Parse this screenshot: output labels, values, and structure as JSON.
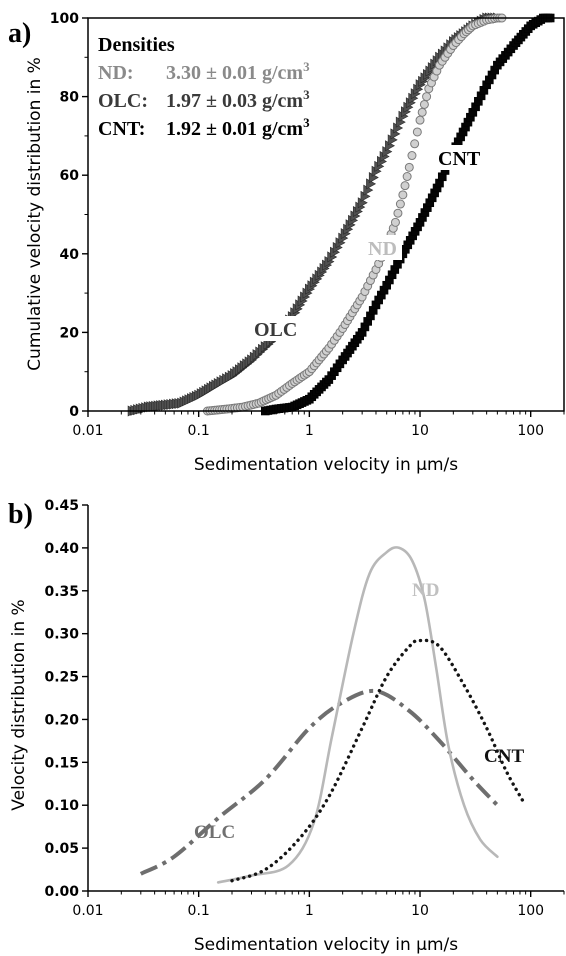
{
  "chart_data": [
    {
      "type": "scatter",
      "panel_label": "a)",
      "xlabel": "Sedimentation velocity in µm/s",
      "ylabel": "Cumulative velocity distribution in %",
      "xscale": "log",
      "xlim": [
        0.01,
        200
      ],
      "ylim": [
        0,
        100
      ],
      "x_ticks": [
        0.01,
        0.1,
        1,
        10,
        100
      ],
      "x_tick_labels": [
        "0.01",
        "0.1",
        "1",
        "10",
        "100"
      ],
      "y_ticks": [
        0,
        20,
        40,
        60,
        80,
        100
      ],
      "y_tick_labels": [
        "0",
        "20",
        "40",
        "60",
        "80",
        "100"
      ],
      "legend_box": {
        "title": "Densities",
        "rows": [
          {
            "name": "ND:",
            "value": "3.30 ± 0.01 g/cm",
            "sup": "3",
            "color": "#8a8a8a"
          },
          {
            "name": "OLC:",
            "value": "1.97 ± 0.03 g/cm",
            "sup": "3",
            "color": "#3a3a3a"
          },
          {
            "name": "CNT:",
            "value": "1.92 ± 0.01 g/cm",
            "sup": "3",
            "color": "#000000"
          }
        ]
      },
      "series": [
        {
          "name": "OLC",
          "marker": "triangle-right",
          "color": "#505050",
          "x": [
            0.025,
            0.035,
            0.05,
            0.07,
            0.1,
            0.15,
            0.2,
            0.3,
            0.5,
            0.7,
            1,
            1.5,
            2,
            3,
            4,
            5,
            7,
            10,
            15,
            20,
            30,
            40,
            50
          ],
          "y": [
            0,
            1,
            1.5,
            2,
            4,
            7,
            9,
            13,
            19,
            24,
            31,
            38,
            44,
            53,
            61,
            66,
            75,
            83,
            90,
            94,
            98,
            100,
            100
          ]
        },
        {
          "name": "ND",
          "marker": "circle",
          "color": "#a8a8a8",
          "x": [
            0.12,
            0.18,
            0.25,
            0.35,
            0.5,
            0.7,
            1,
            1.5,
            2,
            3,
            4,
            5,
            6,
            7,
            8,
            10,
            12,
            15,
            20,
            25,
            30,
            40,
            50,
            55
          ],
          "y": [
            0,
            0.5,
            1,
            2,
            4,
            7,
            10,
            16,
            21,
            29,
            36,
            42,
            48,
            55,
            62,
            74,
            82,
            88,
            93,
            96,
            98,
            99.5,
            100,
            100
          ]
        },
        {
          "name": "CNT",
          "marker": "square",
          "color": "#050505",
          "x": [
            0.4,
            0.5,
            0.7,
            1,
            1.5,
            2,
            3,
            4,
            5,
            7,
            10,
            15,
            20,
            30,
            40,
            50,
            70,
            100,
            130,
            150
          ],
          "y": [
            0,
            0.5,
            1,
            3,
            8,
            13,
            20,
            27,
            32,
            40,
            48,
            58,
            66,
            76,
            83,
            88,
            93,
            98,
            100,
            100
          ]
        }
      ],
      "annotations": [
        {
          "text": "OLC",
          "color": "#3a3a3a"
        },
        {
          "text": "ND",
          "color": "#bdbdbd"
        },
        {
          "text": "CNT",
          "color": "#000000"
        }
      ]
    },
    {
      "type": "line",
      "panel_label": "b)",
      "xlabel": "Sedimentation velocity in µm/s",
      "ylabel": "Velocity distribution in %",
      "xscale": "log",
      "xlim": [
        0.01,
        200
      ],
      "ylim": [
        0,
        0.45
      ],
      "x_ticks": [
        0.01,
        0.1,
        1,
        10,
        100
      ],
      "x_tick_labels": [
        "0.01",
        "0.1",
        "1",
        "10",
        "100"
      ],
      "y_ticks": [
        0,
        0.05,
        0.1,
        0.15,
        0.2,
        0.25,
        0.3,
        0.35,
        0.4,
        0.45
      ],
      "y_tick_labels": [
        "0.00",
        "0.05",
        "0.10",
        "0.15",
        "0.20",
        "0.25",
        "0.30",
        "0.35",
        "0.40",
        "0.45"
      ],
      "series": [
        {
          "name": "OLC",
          "style": "dash-dot",
          "color": "#6e6e6e",
          "x": [
            0.03,
            0.06,
            0.15,
            0.4,
            1,
            2,
            4,
            8,
            15,
            30,
            50
          ],
          "y": [
            0.02,
            0.04,
            0.085,
            0.13,
            0.19,
            0.22,
            0.233,
            0.21,
            0.175,
            0.13,
            0.1
          ]
        },
        {
          "name": "ND",
          "style": "solid",
          "color": "#b8b8b8",
          "x": [
            0.15,
            0.3,
            0.65,
            1.1,
            1.6,
            2.5,
            3.5,
            5,
            6.5,
            8.5,
            11,
            14,
            18,
            25,
            35,
            50
          ],
          "y": [
            0.01,
            0.018,
            0.03,
            0.08,
            0.18,
            0.3,
            0.37,
            0.395,
            0.4,
            0.385,
            0.34,
            0.26,
            0.17,
            0.1,
            0.06,
            0.04
          ]
        },
        {
          "name": "CNT",
          "style": "dotted",
          "color": "#141414",
          "x": [
            0.2,
            0.4,
            0.8,
            1.5,
            3,
            5,
            8,
            10,
            15,
            25,
            40,
            60,
            85
          ],
          "y": [
            0.012,
            0.025,
            0.06,
            0.11,
            0.19,
            0.25,
            0.285,
            0.292,
            0.285,
            0.24,
            0.19,
            0.14,
            0.105
          ]
        }
      ],
      "annotations": [
        {
          "text": "ND",
          "color": "#c0c0c0"
        },
        {
          "text": "CNT",
          "color": "#111111"
        },
        {
          "text": "OLC",
          "color": "#707070"
        }
      ]
    }
  ]
}
